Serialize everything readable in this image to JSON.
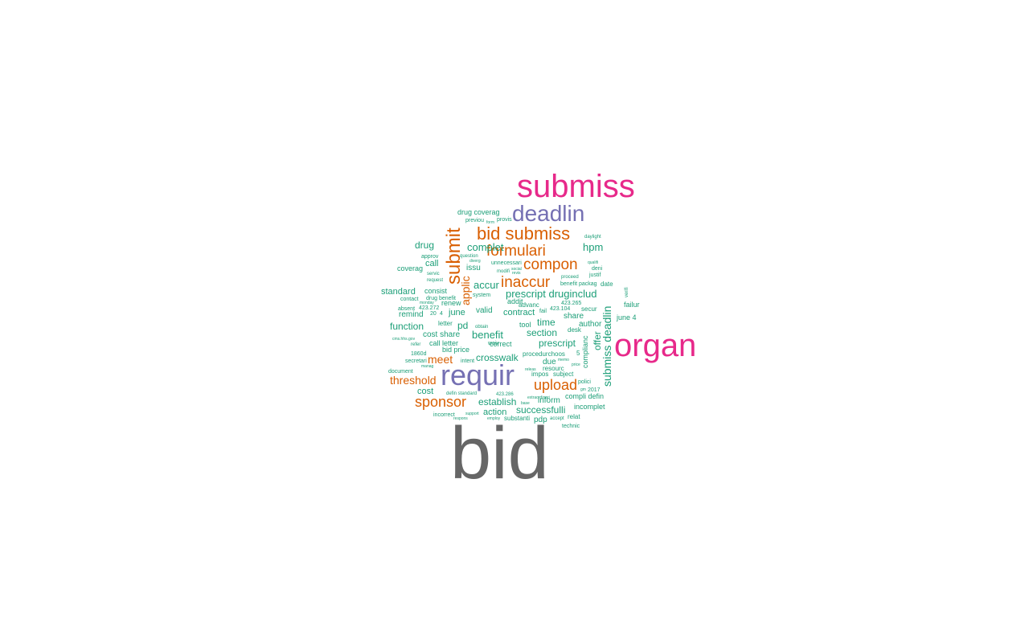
{
  "colors": {
    "gray": "#666666",
    "pink": "#e7298a",
    "purple": "#7570b3",
    "orange": "#d95f02",
    "teal": "#1b9e77"
  },
  "words": [
    {
      "text": "bid",
      "color": "gray"
    },
    {
      "text": "organ",
      "color": "pink"
    },
    {
      "text": "submiss",
      "color": "pink"
    },
    {
      "text": "requir",
      "color": "purple"
    },
    {
      "text": "deadlin",
      "color": "purple"
    },
    {
      "text": "bid submiss",
      "color": "orange"
    },
    {
      "text": "submit",
      "color": "orange"
    },
    {
      "text": "formulari",
      "color": "orange"
    },
    {
      "text": "compon",
      "color": "orange"
    },
    {
      "text": "inaccur",
      "color": "orange"
    },
    {
      "text": "sponsor",
      "color": "orange"
    },
    {
      "text": "upload",
      "color": "orange"
    },
    {
      "text": "threshold",
      "color": "orange"
    },
    {
      "text": "meet",
      "color": "orange"
    },
    {
      "text": "applic",
      "color": "orange"
    },
    {
      "text": "submiss deadlin",
      "color": "teal"
    },
    {
      "text": "drug coverag",
      "color": "teal"
    },
    {
      "text": "complet",
      "color": "teal"
    },
    {
      "text": "hpm",
      "color": "teal"
    },
    {
      "text": "drug",
      "color": "teal"
    },
    {
      "text": "call",
      "color": "teal"
    },
    {
      "text": "coverag",
      "color": "teal"
    },
    {
      "text": "issu",
      "color": "teal"
    },
    {
      "text": "accur",
      "color": "teal"
    },
    {
      "text": "prescript druginclud",
      "color": "teal"
    },
    {
      "text": "standard",
      "color": "teal"
    },
    {
      "text": "consist",
      "color": "teal"
    },
    {
      "text": "renew",
      "color": "teal"
    },
    {
      "text": "june",
      "color": "teal"
    },
    {
      "text": "benefit",
      "color": "teal"
    },
    {
      "text": "pd",
      "color": "teal"
    },
    {
      "text": "remind",
      "color": "teal"
    },
    {
      "text": "function",
      "color": "teal"
    },
    {
      "text": "time",
      "color": "teal"
    },
    {
      "text": "section",
      "color": "teal"
    },
    {
      "text": "share",
      "color": "teal"
    },
    {
      "text": "prescript",
      "color": "teal"
    },
    {
      "text": "offer",
      "color": "teal"
    },
    {
      "text": "author",
      "color": "teal"
    },
    {
      "text": "crosswalk",
      "color": "teal"
    },
    {
      "text": "cost share",
      "color": "teal"
    },
    {
      "text": "call letter",
      "color": "teal"
    },
    {
      "text": "bid price",
      "color": "teal"
    },
    {
      "text": "correct",
      "color": "teal"
    },
    {
      "text": "due",
      "color": "teal"
    },
    {
      "text": "establish",
      "color": "teal"
    },
    {
      "text": "inform",
      "color": "teal"
    },
    {
      "text": "cost",
      "color": "teal"
    },
    {
      "text": "action",
      "color": "teal"
    },
    {
      "text": "successfulli",
      "color": "teal"
    },
    {
      "text": "pdp",
      "color": "teal"
    },
    {
      "text": "incomplet",
      "color": "teal"
    },
    {
      "text": "compli defin",
      "color": "teal"
    },
    {
      "text": "complianc",
      "color": "teal"
    },
    {
      "text": "june 4",
      "color": "teal"
    },
    {
      "text": "failur",
      "color": "teal"
    },
    {
      "text": "secur",
      "color": "teal"
    },
    {
      "text": "date",
      "color": "teal"
    },
    {
      "text": "benefit packag",
      "color": "teal"
    },
    {
      "text": "justif",
      "color": "teal"
    },
    {
      "text": "deni",
      "color": "teal"
    },
    {
      "text": "contract",
      "color": "teal"
    },
    {
      "text": "valid",
      "color": "teal"
    },
    {
      "text": "addit",
      "color": "teal"
    },
    {
      "text": "advanc",
      "color": "teal"
    },
    {
      "text": "tool",
      "color": "teal"
    },
    {
      "text": "desk",
      "color": "teal"
    },
    {
      "text": "subject",
      "color": "teal"
    },
    {
      "text": "impos",
      "color": "teal"
    },
    {
      "text": "resourc",
      "color": "teal"
    },
    {
      "text": "procedurchoos",
      "color": "teal"
    },
    {
      "text": "substanti",
      "color": "teal"
    },
    {
      "text": "relat",
      "color": "teal"
    },
    {
      "text": "technic",
      "color": "teal"
    },
    {
      "text": "2017",
      "color": "teal"
    },
    {
      "text": "polici",
      "color": "teal"
    },
    {
      "text": "423.265",
      "color": "teal"
    },
    {
      "text": "423.104",
      "color": "teal"
    },
    {
      "text": "423.272",
      "color": "teal"
    },
    {
      "text": "absent",
      "color": "teal"
    },
    {
      "text": "contact",
      "color": "teal"
    },
    {
      "text": "drug benefit",
      "color": "teal"
    },
    {
      "text": "approv",
      "color": "teal"
    },
    {
      "text": "unnecessari",
      "color": "teal"
    },
    {
      "text": "previou",
      "color": "teal"
    },
    {
      "text": "provis",
      "color": "teal"
    },
    {
      "text": "document",
      "color": "teal"
    },
    {
      "text": "secretari",
      "color": "teal"
    },
    {
      "text": "defin standard",
      "color": "teal"
    },
    {
      "text": "incorrect",
      "color": "teal"
    },
    {
      "text": "system",
      "color": "teal"
    },
    {
      "text": "fail",
      "color": "teal"
    },
    {
      "text": "intent",
      "color": "teal"
    },
    {
      "text": "refer",
      "color": "teal"
    },
    {
      "text": "manag",
      "color": "teal"
    },
    {
      "text": "1860d",
      "color": "teal"
    },
    {
      "text": "servic",
      "color": "teal"
    },
    {
      "text": "request",
      "color": "teal"
    },
    {
      "text": "letter",
      "color": "teal"
    },
    {
      "text": "waiv",
      "color": "teal"
    },
    {
      "text": "5",
      "color": "teal"
    },
    {
      "text": "423.286",
      "color": "teal"
    },
    {
      "text": "daylight",
      "color": "teal"
    },
    {
      "text": "proceed",
      "color": "teal"
    },
    {
      "text": "verifi",
      "color": "teal"
    },
    {
      "text": "memo",
      "color": "teal"
    },
    {
      "text": "accept",
      "color": "teal"
    },
    {
      "text": "respons",
      "color": "teal"
    },
    {
      "text": "employ",
      "color": "teal"
    },
    {
      "text": "support",
      "color": "teal"
    },
    {
      "text": "monday",
      "color": "teal"
    },
    {
      "text": "question",
      "color": "teal"
    },
    {
      "text": "diverg",
      "color": "teal"
    },
    {
      "text": "modifi",
      "color": "teal"
    },
    {
      "text": "social",
      "color": "teal"
    },
    {
      "text": "revis",
      "color": "teal"
    },
    {
      "text": "form",
      "color": "teal"
    },
    {
      "text": "qualifi",
      "color": "teal"
    },
    {
      "text": "cms.hhs.gov",
      "color": "teal"
    },
    {
      "text": "base",
      "color": "teal"
    },
    {
      "text": "price",
      "color": "teal"
    },
    {
      "text": "gm",
      "color": "teal"
    },
    {
      "text": "obtain",
      "color": "teal"
    },
    {
      "text": "releas",
      "color": "teal"
    },
    {
      "text": "extraordinari",
      "color": "teal"
    },
    {
      "text": "20",
      "color": "teal"
    },
    {
      "text": "4",
      "color": "teal"
    }
  ]
}
